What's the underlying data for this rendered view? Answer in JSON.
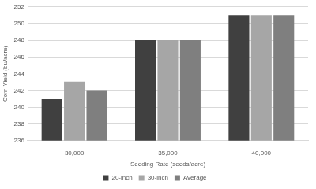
{
  "chart_data": {
    "type": "bar",
    "x_label": "Seeding Rate (seeds/acre)",
    "y_label": "Corn Yield (bu/acre)",
    "categories": [
      "30,000",
      "35,000",
      "40,000"
    ],
    "series": [
      {
        "name": "20-inch",
        "color": "#404040",
        "values": [
          241,
          248,
          251
        ]
      },
      {
        "name": "30-inch",
        "color": "#a6a6a6",
        "values": [
          243,
          248,
          251
        ]
      },
      {
        "name": "Average",
        "color": "#7f7f7f",
        "values": [
          242,
          248,
          251
        ]
      }
    ],
    "ylim": [
      236,
      252
    ],
    "yticks": [
      236,
      238,
      240,
      242,
      244,
      246,
      248,
      250,
      252
    ],
    "grid": true,
    "legend": "bottom"
  }
}
